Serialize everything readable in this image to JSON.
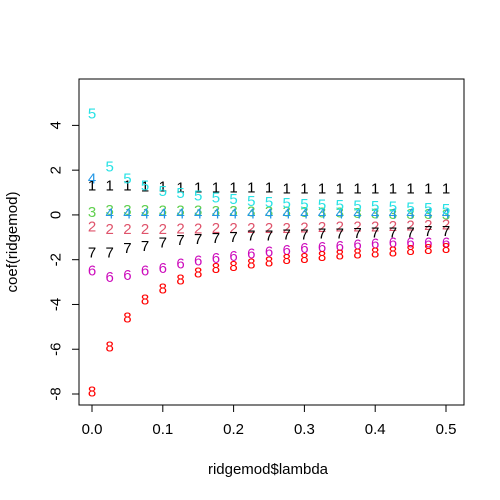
{
  "chart_data": {
    "type": "scatter",
    "title": "",
    "xlabel": "ridgemod$lambda",
    "ylabel": "coef(ridgemod)",
    "xlim": [
      0,
      0.5
    ],
    "ylim": [
      -8,
      5
    ],
    "xticks": [
      0.0,
      0.1,
      0.2,
      0.3,
      0.4,
      0.5
    ],
    "xtick_labels": [
      "0.0",
      "0.1",
      "0.2",
      "0.3",
      "0.4",
      "0.5"
    ],
    "yticks": [
      -8,
      -6,
      -4,
      -2,
      0,
      2,
      4
    ],
    "ytick_labels": [
      "-8",
      "-6",
      "-4",
      "-2",
      "0",
      "2",
      "4"
    ],
    "grid": false,
    "legend": "none",
    "x": [
      0.0,
      0.025,
      0.05,
      0.075,
      0.1,
      0.125,
      0.15,
      0.175,
      0.2,
      0.225,
      0.25,
      0.275,
      0.3,
      0.325,
      0.35,
      0.375,
      0.4,
      0.425,
      0.45,
      0.475,
      0.5
    ],
    "series": [
      {
        "marker": "1",
        "color": "#000000",
        "values": [
          1.3,
          1.3,
          1.3,
          1.25,
          1.25,
          1.2,
          1.2,
          1.2,
          1.2,
          1.2,
          1.2,
          1.15,
          1.15,
          1.15,
          1.15,
          1.15,
          1.15,
          1.15,
          1.15,
          1.15,
          1.15
        ]
      },
      {
        "marker": "2",
        "color": "#DF536B",
        "values": [
          -0.55,
          -0.65,
          -0.65,
          -0.65,
          -0.65,
          -0.62,
          -0.62,
          -0.6,
          -0.6,
          -0.6,
          -0.6,
          -0.6,
          -0.58,
          -0.56,
          -0.55,
          -0.54,
          -0.53,
          -0.52,
          -0.5,
          -0.48,
          -0.45
        ]
      },
      {
        "marker": "3",
        "color": "#61D04F",
        "values": [
          0.1,
          0.2,
          0.2,
          0.2,
          0.18,
          0.18,
          0.17,
          0.16,
          0.15,
          0.14,
          0.13,
          0.12,
          0.1,
          0.09,
          0.08,
          0.06,
          0.05,
          0.03,
          0.02,
          0.01,
          0.0
        ]
      },
      {
        "marker": "4",
        "color": "#2297E6",
        "values": [
          1.6,
          0.05,
          0.05,
          0.05,
          0.05,
          0.05,
          0.05,
          0.05,
          0.05,
          0.05,
          0.05,
          0.05,
          0.05,
          0.05,
          0.05,
          0.05,
          0.05,
          0.05,
          0.05,
          0.05,
          0.05
        ]
      },
      {
        "marker": "5",
        "color": "#28E2E5",
        "values": [
          4.5,
          2.15,
          1.6,
          1.3,
          1.05,
          0.95,
          0.85,
          0.75,
          0.7,
          0.6,
          0.55,
          0.5,
          0.47,
          0.45,
          0.42,
          0.4,
          0.37,
          0.35,
          0.3,
          0.28,
          0.25
        ]
      },
      {
        "marker": "6",
        "color": "#CD0BBC",
        "values": [
          -2.5,
          -2.8,
          -2.7,
          -2.5,
          -2.4,
          -2.2,
          -2.05,
          -1.95,
          -1.85,
          -1.75,
          -1.65,
          -1.6,
          -1.5,
          -1.45,
          -1.4,
          -1.35,
          -1.3,
          -1.25,
          -1.25,
          -1.25,
          -1.25
        ]
      },
      {
        "marker": "7",
        "color": "#000000",
        "values": [
          -1.7,
          -1.7,
          -1.5,
          -1.4,
          -1.25,
          -1.15,
          -1.1,
          -1.05,
          -1.0,
          -0.95,
          -0.95,
          -0.9,
          -0.9,
          -0.85,
          -0.85,
          -0.82,
          -0.8,
          -0.8,
          -0.8,
          -0.75,
          -0.75
        ]
      },
      {
        "marker": "8",
        "color": "#FF0000",
        "values": [
          -7.9,
          -5.9,
          -4.6,
          -3.8,
          -3.3,
          -2.9,
          -2.6,
          -2.4,
          -2.3,
          -2.2,
          -2.1,
          -2.0,
          -1.95,
          -1.85,
          -1.8,
          -1.75,
          -1.7,
          -1.65,
          -1.6,
          -1.55,
          -1.5
        ]
      }
    ]
  }
}
